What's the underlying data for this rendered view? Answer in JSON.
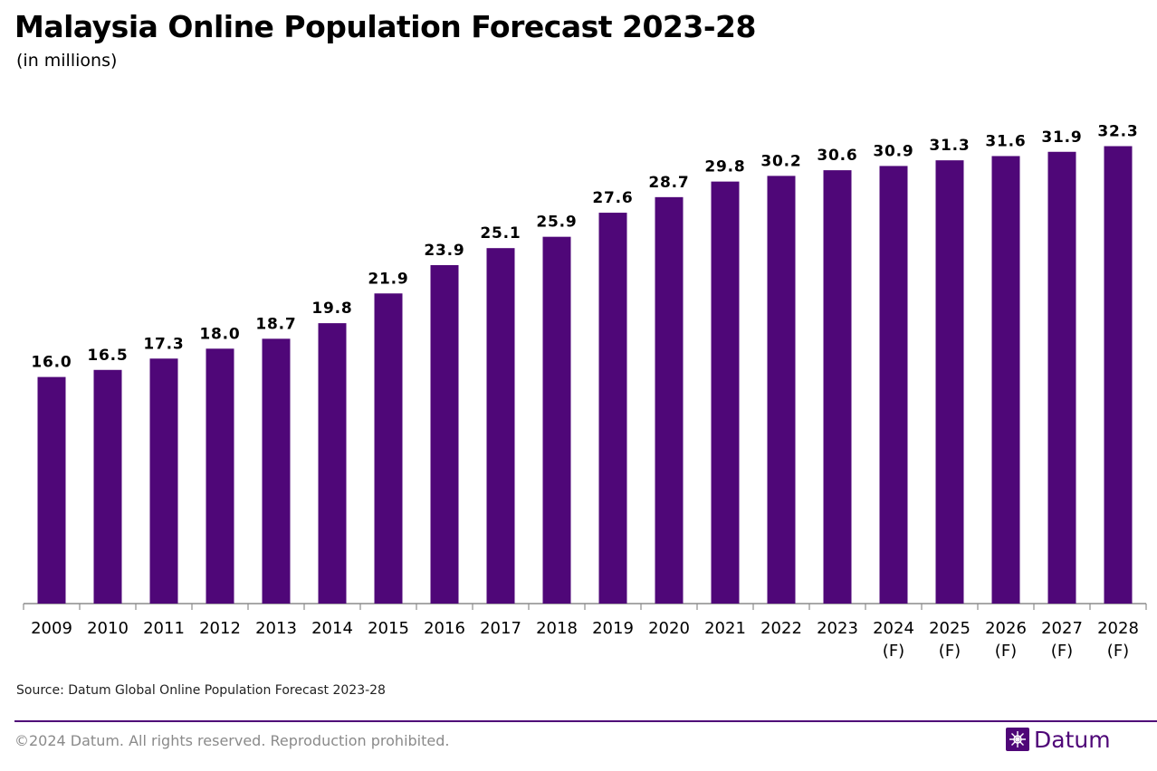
{
  "header": {
    "title": "Malaysia Online Population Forecast 2023-28",
    "subtitle": "(in millions)"
  },
  "footer": {
    "source": "Source: Datum Global Online Population Forecast 2023-28",
    "copyright": "©2024 Datum. All rights reserved. Reproduction prohibited.",
    "brand_name": "Datum",
    "brand_icon": "datum-logo-icon"
  },
  "colors": {
    "bar": "#4f0778",
    "brand": "#4f0778",
    "axis": "#8c8c8c"
  },
  "chart_data": {
    "type": "bar",
    "title": "Malaysia Online Population Forecast 2023-28",
    "subtitle": "(in millions)",
    "xlabel": "",
    "ylabel": "",
    "ylim": [
      0,
      34
    ],
    "grid": false,
    "legend": "none",
    "categories": [
      "2009",
      "2010",
      "2011",
      "2012",
      "2013",
      "2014",
      "2015",
      "2016",
      "2017",
      "2018",
      "2019",
      "2020",
      "2021",
      "2022",
      "2023",
      "2024 (F)",
      "2025 (F)",
      "2026 (F)",
      "2027 (F)",
      "2028 (F)"
    ],
    "category_lines": [
      [
        "2009"
      ],
      [
        "2010"
      ],
      [
        "2011"
      ],
      [
        "2012"
      ],
      [
        "2013"
      ],
      [
        "2014"
      ],
      [
        "2015"
      ],
      [
        "2016"
      ],
      [
        "2017"
      ],
      [
        "2018"
      ],
      [
        "2019"
      ],
      [
        "2020"
      ],
      [
        "2021"
      ],
      [
        "2022"
      ],
      [
        "2023"
      ],
      [
        "2024",
        "(F)"
      ],
      [
        "2025",
        "(F)"
      ],
      [
        "2026",
        "(F)"
      ],
      [
        "2027",
        "(F)"
      ],
      [
        "2028",
        "(F)"
      ]
    ],
    "values": [
      16.0,
      16.5,
      17.3,
      18.0,
      18.7,
      19.8,
      21.9,
      23.9,
      25.1,
      25.9,
      27.6,
      28.7,
      29.8,
      30.2,
      30.6,
      30.9,
      31.3,
      31.6,
      31.9,
      32.3
    ],
    "data_labels": [
      "16.0",
      "16.5",
      "17.3",
      "18.0",
      "18.7",
      "19.8",
      "21.9",
      "23.9",
      "25.1",
      "25.9",
      "27.6",
      "28.7",
      "29.8",
      "30.2",
      "30.6",
      "30.9",
      "31.3",
      "31.6",
      "31.9",
      "32.3"
    ]
  }
}
